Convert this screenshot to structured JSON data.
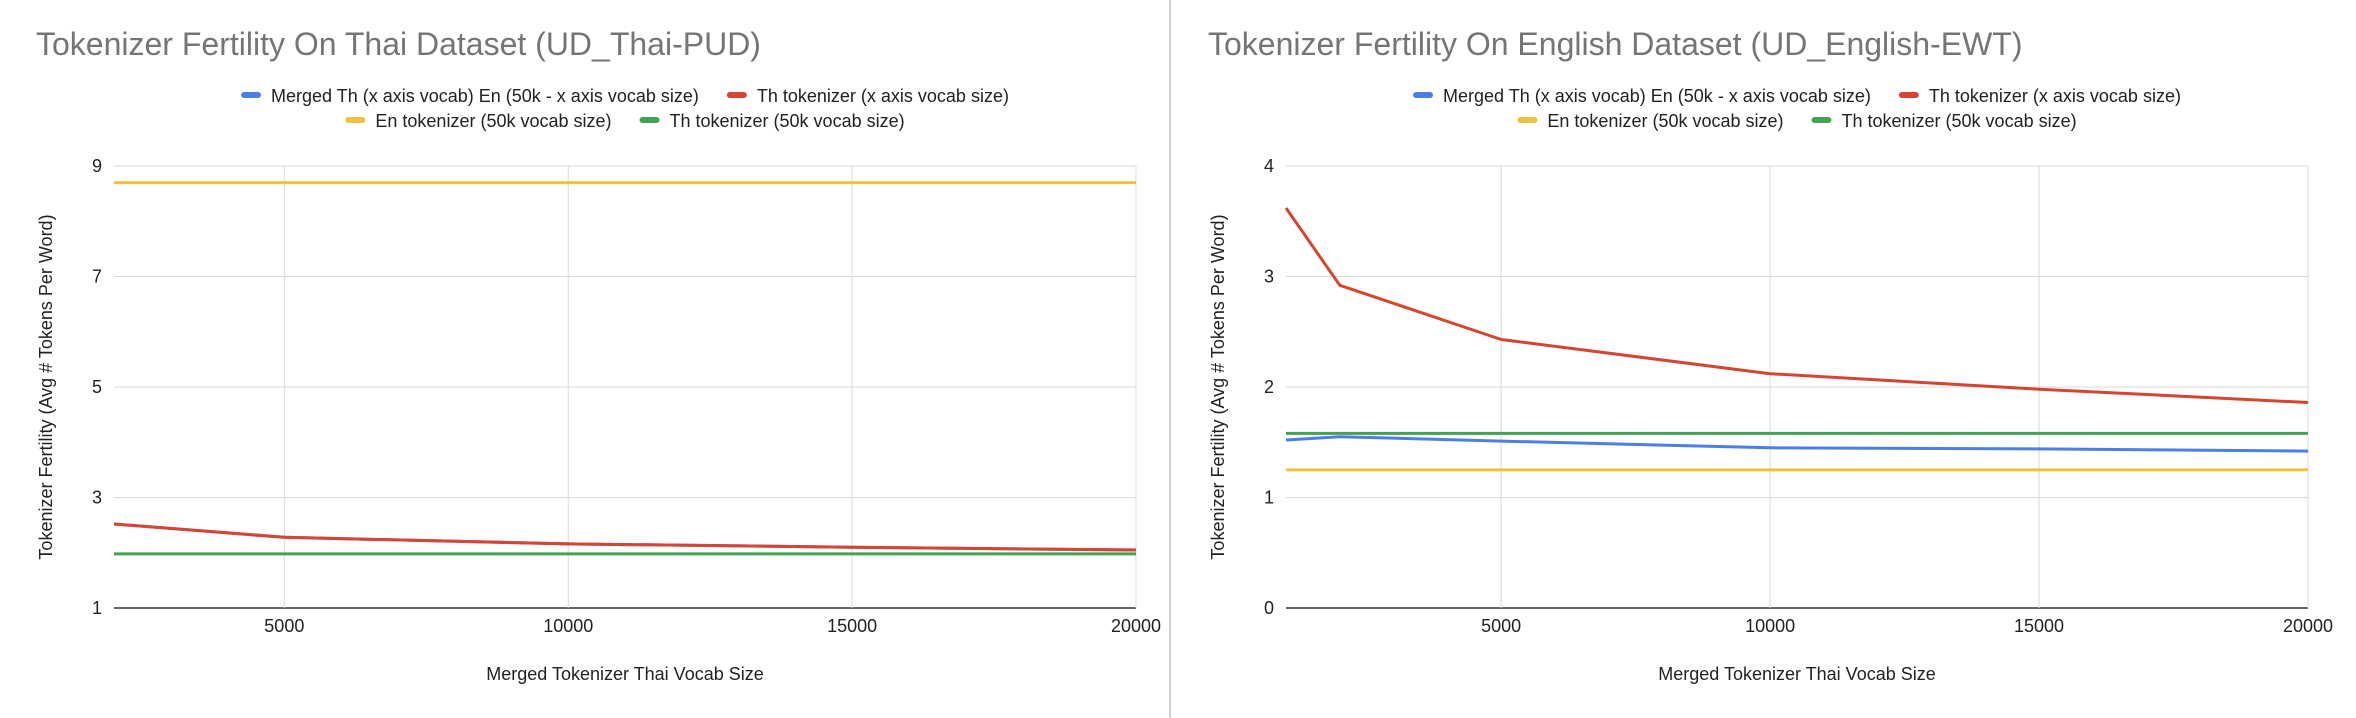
{
  "chart_data": [
    {
      "type": "line",
      "title": "Tokenizer Fertility On Thai Dataset (UD_Thai-PUD)",
      "xlabel": "Merged Tokenizer Thai Vocab Size",
      "ylabel": "Tokenizer Fertility (Avg # Tokens Per  Word)",
      "xlim": [
        2000,
        20000
      ],
      "ylim": [
        1,
        9
      ],
      "xticks": [
        5000,
        10000,
        15000,
        20000
      ],
      "yticks": [
        1,
        3,
        5,
        7,
        9
      ],
      "grid": true,
      "legend_position": "top",
      "series": [
        {
          "name": "Merged Th (x axis vocab) En (50k - x axis vocab size)",
          "color": "#4a7fe8",
          "x": [
            2000,
            5000,
            10000,
            15000,
            20000
          ],
          "y": [
            2.52,
            2.28,
            2.16,
            2.1,
            2.05
          ]
        },
        {
          "name": "Th tokenizer (x axis vocab size)",
          "color": "#d64531",
          "x": [
            2000,
            5000,
            10000,
            15000,
            20000
          ],
          "y": [
            2.52,
            2.28,
            2.16,
            2.1,
            2.05
          ]
        },
        {
          "name": "En tokenizer (50k vocab size)",
          "color": "#f2c040",
          "x": [
            2000,
            20000
          ],
          "y": [
            8.7,
            8.7
          ]
        },
        {
          "name": "Th tokenizer (50k vocab size)",
          "color": "#42a352",
          "x": [
            2000,
            20000
          ],
          "y": [
            1.98,
            1.98
          ]
        }
      ]
    },
    {
      "type": "line",
      "title": "Tokenizer Fertility On English Dataset (UD_English-EWT)",
      "xlabel": "Merged Tokenizer Thai Vocab Size",
      "ylabel": "Tokenizer Fertility (Avg # Tokens Per  Word)",
      "xlim": [
        1000,
        20000
      ],
      "ylim": [
        0,
        4
      ],
      "xticks": [
        5000,
        10000,
        15000,
        20000
      ],
      "yticks": [
        0,
        1,
        2,
        3,
        4
      ],
      "grid": true,
      "legend_position": "top",
      "series": [
        {
          "name": "Merged Th (x axis vocab) En (50k - x axis vocab size)",
          "color": "#4a7fe8",
          "x": [
            1000,
            2000,
            5000,
            10000,
            15000,
            20000
          ],
          "y": [
            1.52,
            1.55,
            1.51,
            1.45,
            1.44,
            1.42
          ]
        },
        {
          "name": "Th tokenizer (x axis vocab size)",
          "color": "#d64531",
          "x": [
            1000,
            2000,
            5000,
            10000,
            15000,
            20000
          ],
          "y": [
            3.62,
            2.92,
            2.43,
            2.12,
            1.98,
            1.86
          ]
        },
        {
          "name": "En tokenizer (50k vocab size)",
          "color": "#f2c040",
          "x": [
            1000,
            20000
          ],
          "y": [
            1.25,
            1.25
          ]
        },
        {
          "name": "Th tokenizer (50k vocab size)",
          "color": "#42a352",
          "x": [
            1000,
            20000
          ],
          "y": [
            1.58,
            1.58
          ]
        }
      ]
    }
  ]
}
